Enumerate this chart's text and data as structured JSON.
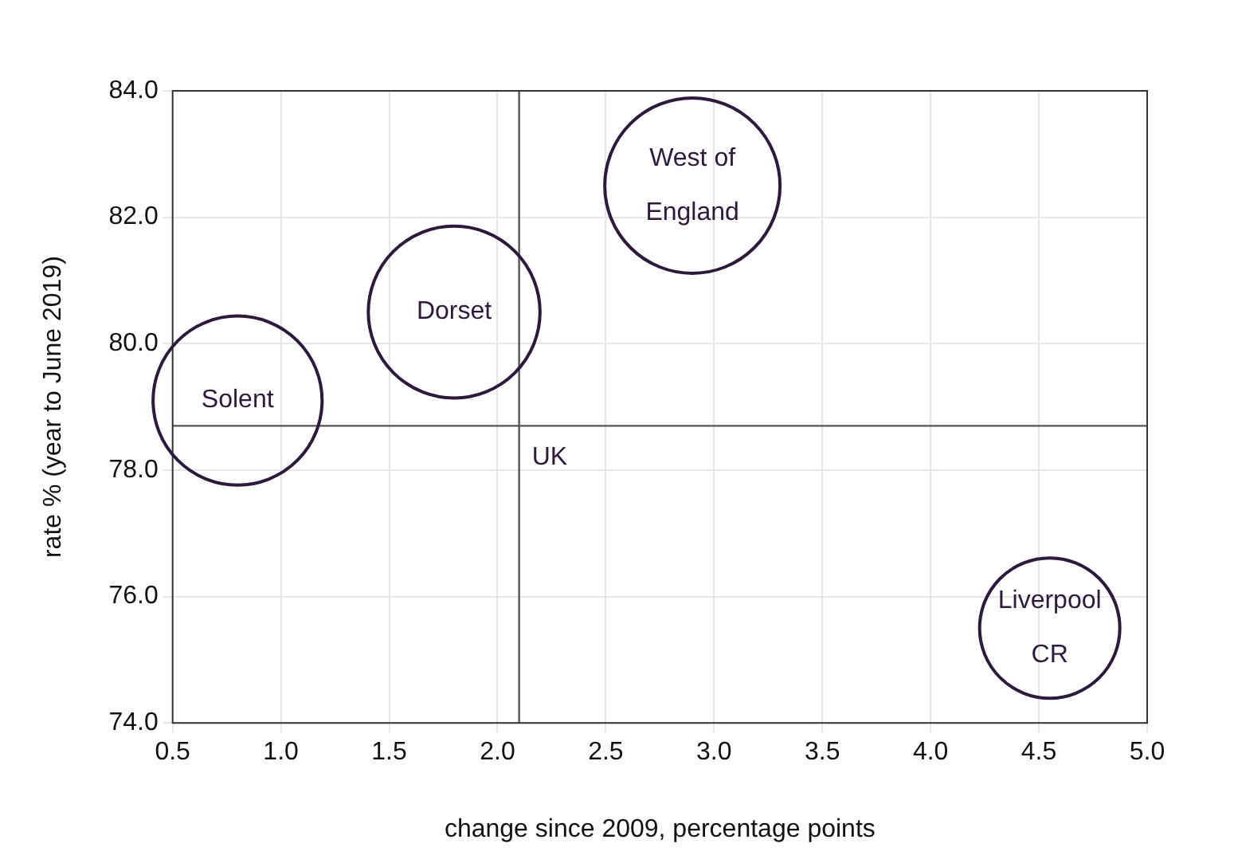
{
  "chart_data": {
    "type": "bubble",
    "xlabel": "change since 2009, percentage points",
    "ylabel": "rate % (year to June 2019)",
    "x": [
      0.8,
      1.8,
      2.9,
      4.55
    ],
    "series": [
      {
        "color": "#2d1a3a",
        "values": [
          79.1,
          80.5,
          82.5,
          75.5
        ],
        "sizes": [
          0.93,
          0.96,
          1,
          0.64
        ]
      }
    ],
    "annotations": [
      {
        "text": "Solent",
        "x": 0.8,
        "y": 79.1
      },
      {
        "text": "Dorset",
        "x": 1.8,
        "y": 80.5
      },
      {
        "text": "West of England",
        "x": 2.9,
        "y": 82.5
      },
      {
        "text": "Liverpool CR",
        "x": 4.55,
        "y": 75.5
      },
      {
        "text": "UK",
        "x": 2.1,
        "y": 78.7
      }
    ],
    "ref_lines": [
      {
        "axis": "x",
        "value": 2.1,
        "color": "#555555"
      },
      {
        "axis": "y",
        "value": 78.7,
        "color": "#555555"
      }
    ],
    "xlim": [
      0.5,
      5.0
    ],
    "xticks": [
      {
        "value": 0.5,
        "label": "0.5"
      },
      {
        "value": 1,
        "label": "1.0"
      },
      {
        "value": 1.5,
        "label": "1.5"
      },
      {
        "value": 2,
        "label": "2.0"
      },
      {
        "value": 2.5,
        "label": "2.5"
      },
      {
        "value": 3,
        "label": "3.0"
      },
      {
        "value": 3.5,
        "label": "3.5"
      },
      {
        "value": 4,
        "label": "4.0"
      },
      {
        "value": 4.5,
        "label": "4.5"
      },
      {
        "value": 5,
        "label": "5.0"
      }
    ],
    "ylim": [
      74,
      84
    ],
    "yticks": [
      {
        "value": 74,
        "label": "74.0"
      },
      {
        "value": 76,
        "label": "76.0"
      },
      {
        "value": 78,
        "label": "78.0"
      },
      {
        "value": 80,
        "label": "80.0"
      },
      {
        "value": 82,
        "label": "82.0"
      },
      {
        "value": 84,
        "label": "84.0"
      }
    ],
    "grid": true,
    "legend": false
  }
}
